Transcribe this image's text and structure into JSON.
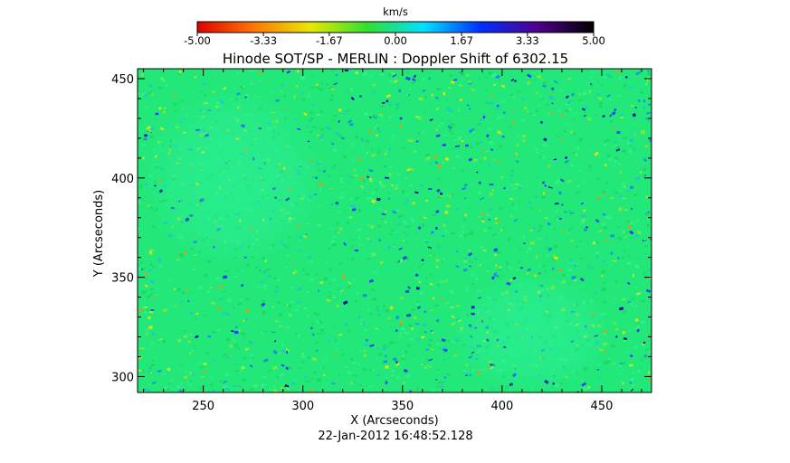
{
  "chart_data": {
    "type": "heatmap",
    "title": "Hinode SOT/SP - MERLIN : Doppler Shift of 6302.15",
    "xlabel": "X (Arcseconds)",
    "ylabel": "Y (Arcseconds)",
    "footer": "22-Jan-2012 16:48:52.128",
    "xlim": [
      217,
      475
    ],
    "ylim": [
      292,
      455
    ],
    "x_ticks": [
      {
        "value": 250,
        "label": "250"
      },
      {
        "value": 300,
        "label": "300"
      },
      {
        "value": 350,
        "label": "350"
      },
      {
        "value": 400,
        "label": "400"
      },
      {
        "value": 450,
        "label": "450"
      }
    ],
    "y_ticks": [
      {
        "value": 300,
        "label": "300"
      },
      {
        "value": 350,
        "label": "350"
      },
      {
        "value": 400,
        "label": "400"
      },
      {
        "value": 450,
        "label": "450"
      }
    ],
    "colorbar": {
      "unit": "km/s",
      "range": [
        -5.0,
        5.0
      ],
      "ticks": [
        {
          "value": -5.0,
          "label": "-5.00"
        },
        {
          "value": -3.33,
          "label": "-3.33"
        },
        {
          "value": -1.67,
          "label": "-1.67"
        },
        {
          "value": 0.0,
          "label": "0.00"
        },
        {
          "value": 1.67,
          "label": "1.67"
        },
        {
          "value": 3.33,
          "label": "3.33"
        },
        {
          "value": 5.0,
          "label": "5.00"
        }
      ],
      "colors": [
        "#e00000",
        "#ff7800",
        "#e8e800",
        "#30e030",
        "#00e0ff",
        "#0030ff",
        "#50008c",
        "#000000"
      ]
    },
    "field": {
      "background_color": "#22e87a",
      "noise_colors": [
        "#1ed861",
        "#30f08a",
        "#7ce83c",
        "#c8e81a",
        "#d0a01a",
        "#1ec8c8",
        "#1890e0",
        "#2040f0",
        "#1010a0"
      ],
      "features": [
        {
          "name": "quiet cell",
          "x": 265,
          "y": 400,
          "rx": 45,
          "ry": 45
        },
        {
          "name": "quiet cell",
          "x": 415,
          "y": 322,
          "rx": 40,
          "ry": 30
        }
      ]
    }
  }
}
